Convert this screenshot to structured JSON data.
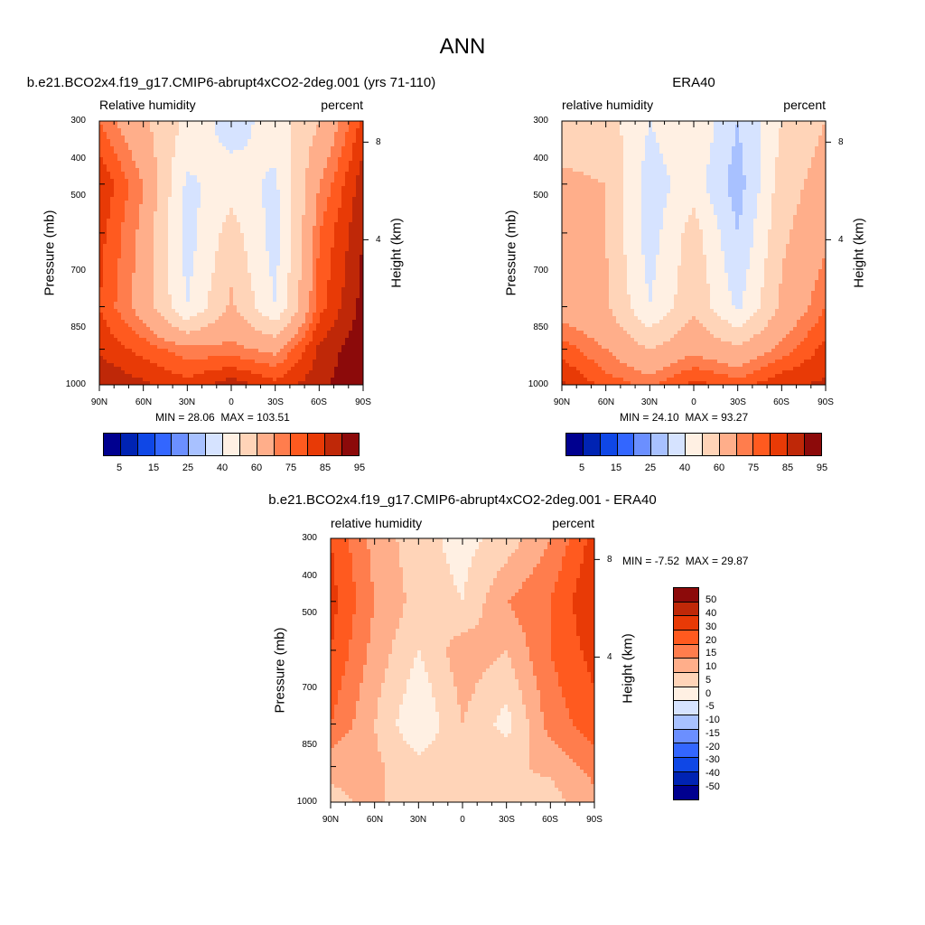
{
  "figure": {
    "title": "ANN"
  },
  "colors": {
    "absolute": [
      "#00008f",
      "#0023b3",
      "#0f47e6",
      "#3366ff",
      "#6b8fff",
      "#a8c1ff",
      "#d6e3ff",
      "#fff0e3",
      "#ffd4b8",
      "#ffae8a",
      "#ff7d4d",
      "#ff5a1f",
      "#e83a06",
      "#bf2808",
      "#8c0a0a"
    ],
    "difference": [
      "#8c0a0a",
      "#bf2808",
      "#e83a06",
      "#ff5a1f",
      "#ff7d4d",
      "#ffae8a",
      "#ffd4b8",
      "#fff0e3",
      "#d6e3ff",
      "#a8c1ff",
      "#6b8fff",
      "#3366ff",
      "#0f47e6",
      "#0023b3",
      "#00008f"
    ]
  },
  "panels": [
    {
      "title": "b.e21.BCO2x4.f19_g17.CMIP6-abrupt4xCO2-2deg.001 (yrs 71-110)",
      "left_label": "Relative humidity",
      "right_label": "percent",
      "y_label": "Pressure (mb)",
      "y2_label": "Height (km)",
      "y_ticks": [
        "300",
        "400",
        "500",
        "700",
        "850",
        "1000"
      ],
      "y2_ticks": [
        "8",
        "4"
      ],
      "x_ticks": [
        "90N",
        "60N",
        "30N",
        "0",
        "30S",
        "60S",
        "90S"
      ],
      "min_label": "MIN =",
      "min": "28.06",
      "max_label": "MAX =",
      "max": "103.51",
      "colorbar_labels": [
        "5",
        "15",
        "25",
        "40",
        "60",
        "75",
        "85",
        "95"
      ]
    },
    {
      "title": "ERA40",
      "left_label": "relative humidity",
      "right_label": "percent",
      "y_label": "Pressure (mb)",
      "y2_label": "Height (km)",
      "y_ticks": [
        "300",
        "400",
        "500",
        "700",
        "850",
        "1000"
      ],
      "y2_ticks": [
        "8",
        "4"
      ],
      "x_ticks": [
        "90N",
        "60N",
        "30N",
        "0",
        "30S",
        "60S",
        "90S"
      ],
      "min_label": "MIN =",
      "min": "24.10",
      "max_label": "MAX =",
      "max": "93.27",
      "colorbar_labels": [
        "5",
        "15",
        "25",
        "40",
        "60",
        "75",
        "85",
        "95"
      ]
    },
    {
      "title": "b.e21.BCO2x4.f19_g17.CMIP6-abrupt4xCO2-2deg.001 - ERA40",
      "left_label": "relative humidity",
      "right_label": "percent",
      "y_label": "Pressure (mb)",
      "y2_label": "Height (km)",
      "y_ticks": [
        "300",
        "400",
        "500",
        "700",
        "850",
        "1000"
      ],
      "y2_ticks": [
        "8",
        "4"
      ],
      "x_ticks": [
        "90N",
        "60N",
        "30N",
        "0",
        "30S",
        "60S",
        "90S"
      ],
      "min_label": "MIN =",
      "min": "-7.52",
      "max_label": "MAX =",
      "max": "29.87",
      "colorbar_labels": [
        "50",
        "40",
        "30",
        "20",
        "15",
        "10",
        "5",
        "0",
        "-5",
        "-10",
        "-15",
        "-20",
        "-30",
        "-40",
        "-50"
      ]
    }
  ],
  "chart_data": [
    {
      "type": "heatmap",
      "title": "b.e21.BCO2x4.f19_g17.CMIP6-abrupt4xCO2-2deg.001 (yrs 71-110)",
      "xlabel": "",
      "ylabel": "Pressure (mb)",
      "y2label": "Height (km)",
      "x": [
        "90N",
        "60N",
        "30N",
        "0",
        "30S",
        "60S",
        "90S"
      ],
      "y": [
        300,
        400,
        500,
        700,
        850,
        1000
      ],
      "levels": [
        5,
        10,
        15,
        20,
        25,
        30,
        40,
        50,
        60,
        70,
        75,
        80,
        85,
        90,
        95
      ],
      "values": [
        [
          75,
          62,
          48,
          35,
          45,
          60,
          82
        ],
        [
          85,
          70,
          38,
          45,
          38,
          70,
          88
        ],
        [
          82,
          68,
          35,
          55,
          35,
          75,
          90
        ],
        [
          80,
          66,
          40,
          62,
          40,
          78,
          92
        ],
        [
          84,
          78,
          72,
          72,
          68,
          86,
          94
        ],
        [
          90,
          86,
          82,
          88,
          82,
          88,
          96
        ]
      ],
      "min": 28.06,
      "max": 103.51,
      "units": "percent"
    },
    {
      "type": "heatmap",
      "title": "ERA40",
      "xlabel": "",
      "ylabel": "Pressure (mb)",
      "y2label": "Height (km)",
      "x": [
        "90N",
        "60N",
        "30N",
        "0",
        "30S",
        "60S",
        "90S"
      ],
      "y": [
        300,
        400,
        500,
        700,
        850,
        1000
      ],
      "levels": [
        5,
        10,
        15,
        20,
        25,
        30,
        40,
        50,
        60,
        70,
        75,
        80,
        85,
        90,
        95
      ],
      "values": [
        [
          55,
          55,
          40,
          50,
          30,
          50,
          60
        ],
        [
          62,
          60,
          35,
          45,
          25,
          55,
          65
        ],
        [
          62,
          60,
          35,
          55,
          30,
          58,
          68
        ],
        [
          65,
          62,
          40,
          58,
          38,
          62,
          75
        ],
        [
          78,
          70,
          60,
          68,
          62,
          72,
          82
        ],
        [
          86,
          78,
          74,
          82,
          78,
          84,
          86
        ]
      ],
      "min": 24.1,
      "max": 93.27,
      "units": "percent"
    },
    {
      "type": "heatmap",
      "title": "b.e21.BCO2x4.f19_g17.CMIP6-abrupt4xCO2-2deg.001 - ERA40",
      "xlabel": "",
      "ylabel": "Pressure (mb)",
      "y2label": "Height (km)",
      "x": [
        "90N",
        "60N",
        "30N",
        "0",
        "30S",
        "60S",
        "90S"
      ],
      "y": [
        300,
        400,
        500,
        700,
        850,
        1000
      ],
      "levels": [
        -50,
        -40,
        -30,
        -20,
        -15,
        -10,
        -5,
        0,
        5,
        10,
        15,
        20,
        30,
        40,
        50
      ],
      "values": [
        [
          20,
          8,
          2,
          -2,
          2,
          10,
          22
        ],
        [
          22,
          10,
          3,
          0,
          10,
          15,
          25
        ],
        [
          20,
          8,
          0,
          8,
          5,
          15,
          22
        ],
        [
          15,
          5,
          -5,
          5,
          -2,
          12,
          18
        ],
        [
          6,
          6,
          2,
          3,
          4,
          6,
          12
        ],
        [
          4,
          6,
          2,
          4,
          4,
          3,
          8
        ]
      ],
      "min": -7.52,
      "max": 29.87,
      "units": "percent"
    }
  ]
}
